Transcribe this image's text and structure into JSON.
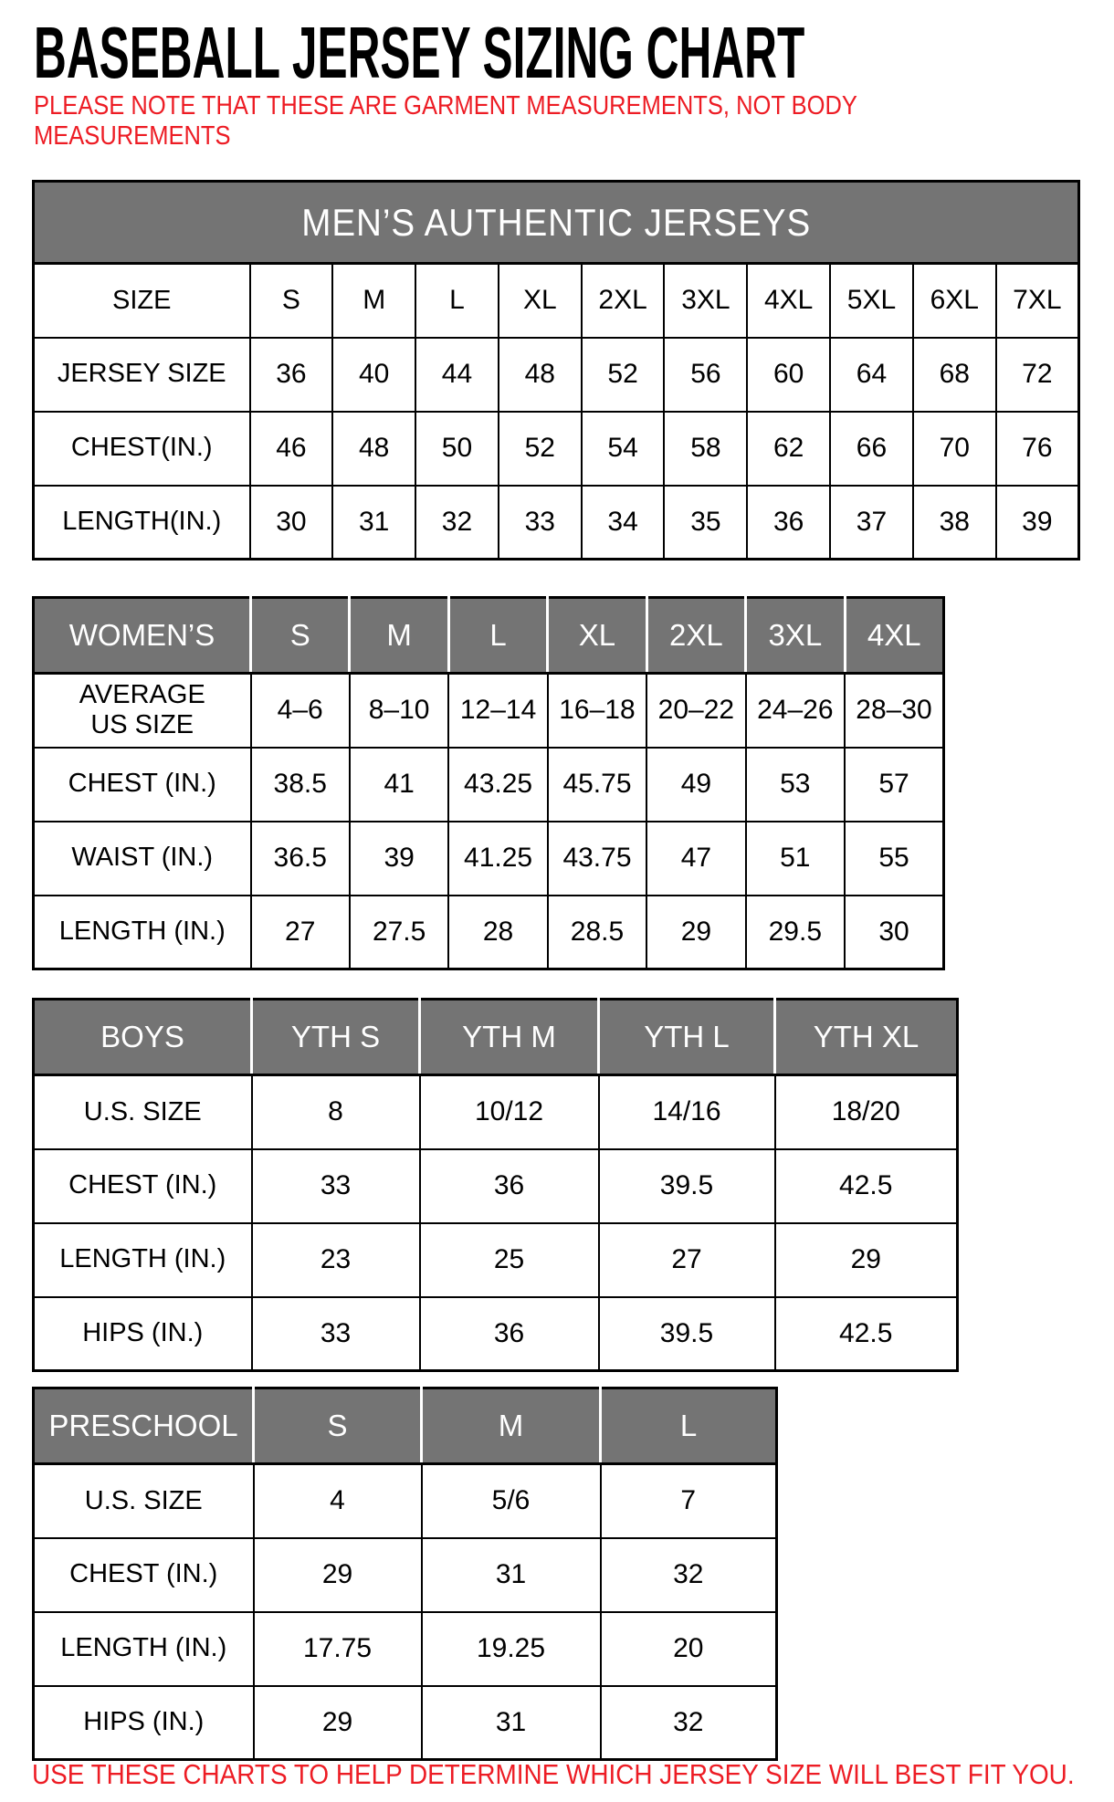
{
  "title": "BASEBALL JERSEY SIZING CHART",
  "note_lines": [
    "PLEASE NOTE THAT THESE ARE GARMENT MEASUREMENTS, NOT BODY",
    "MEASUREMENTS"
  ],
  "footer": "USE THESE CHARTS TO HELP DETERMINE WHICH JERSEY SIZE WILL BEST FIT YOU.",
  "colors": {
    "header_gray": "#747474",
    "accent_red": "#ed1c24",
    "header_text": "#ffffff",
    "border": "#000000"
  },
  "tables": {
    "mens": {
      "banner": "MEN’S AUTHENTIC JERSEYS",
      "rows": [
        {
          "label": "SIZE",
          "values": [
            "S",
            "M",
            "L",
            "XL",
            "2XL",
            "3XL",
            "4XL",
            "5XL",
            "6XL",
            "7XL"
          ]
        },
        {
          "label": "JERSEY SIZE",
          "values": [
            "36",
            "40",
            "44",
            "48",
            "52",
            "56",
            "60",
            "64",
            "68",
            "72"
          ]
        },
        {
          "label": "CHEST(IN.)",
          "values": [
            "46",
            "48",
            "50",
            "52",
            "54",
            "58",
            "62",
            "66",
            "70",
            "76"
          ]
        },
        {
          "label": "LENGTH(IN.)",
          "values": [
            "30",
            "31",
            "32",
            "33",
            "34",
            "35",
            "36",
            "37",
            "38",
            "39"
          ]
        }
      ]
    },
    "womens": {
      "header": [
        "WOMEN’S",
        "S",
        "M",
        "L",
        "XL",
        "2XL",
        "3XL",
        "4XL"
      ],
      "rows": [
        {
          "label": "AVERAGE\nUS SIZE",
          "values": [
            "4–6",
            "8–10",
            "12–14",
            "16–18",
            "20–22",
            "24–26",
            "28–30"
          ]
        },
        {
          "label": "CHEST (IN.)",
          "values": [
            "38.5",
            "41",
            "43.25",
            "45.75",
            "49",
            "53",
            "57"
          ]
        },
        {
          "label": "WAIST (IN.)",
          "values": [
            "36.5",
            "39",
            "41.25",
            "43.75",
            "47",
            "51",
            "55"
          ]
        },
        {
          "label": "LENGTH (IN.)",
          "values": [
            "27",
            "27.5",
            "28",
            "28.5",
            "29",
            "29.5",
            "30"
          ]
        }
      ]
    },
    "boys": {
      "header": [
        "BOYS",
        "YTH S",
        "YTH M",
        "YTH L",
        "YTH XL"
      ],
      "rows": [
        {
          "label": "U.S. SIZE",
          "values": [
            "8",
            "10/12",
            "14/16",
            "18/20"
          ]
        },
        {
          "label": "CHEST (IN.)",
          "values": [
            "33",
            "36",
            "39.5",
            "42.5"
          ]
        },
        {
          "label": "LENGTH (IN.)",
          "values": [
            "23",
            "25",
            "27",
            "29"
          ]
        },
        {
          "label": "HIPS (IN.)",
          "values": [
            "33",
            "36",
            "39.5",
            "42.5"
          ]
        }
      ]
    },
    "preschool": {
      "header": [
        "PRESCHOOL",
        "S",
        "M",
        "L"
      ],
      "rows": [
        {
          "label": "U.S. SIZE",
          "values": [
            "4",
            "5/6",
            "7"
          ]
        },
        {
          "label": "CHEST (IN.)",
          "values": [
            "29",
            "31",
            "32"
          ]
        },
        {
          "label": "LENGTH (IN.)",
          "values": [
            "17.75",
            "19.25",
            "20"
          ]
        },
        {
          "label": "HIPS (IN.)",
          "values": [
            "29",
            "31",
            "32"
          ]
        }
      ]
    }
  }
}
